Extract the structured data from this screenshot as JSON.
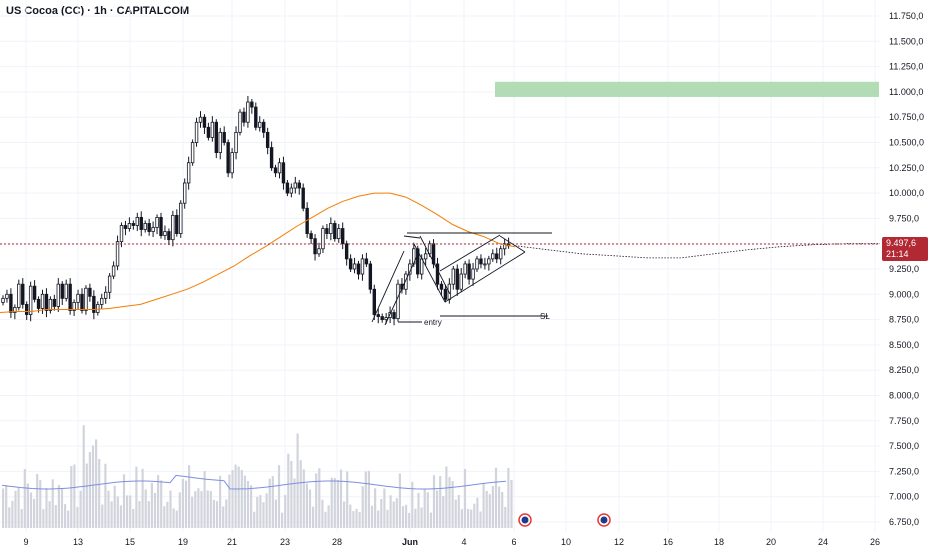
{
  "chart_data": {
    "type": "candlestick",
    "title": "US Cocoa (CC) · 1h · CAPITALCOM",
    "y_axis": {
      "position": "right",
      "ticks": [
        "11.750,0",
        "11.500,0",
        "11.250,0",
        "11.000,0",
        "10.750,0",
        "10.500,0",
        "10.250,0",
        "10.000,0",
        "9.750,0",
        "9.500,0",
        "9.250,0",
        "9.000,0",
        "8.750,0",
        "8.500,0",
        "8.250,0",
        "8.000,0",
        "7.750,0",
        "7.500,0",
        "7.250,0",
        "7.000,0",
        "6.750,0"
      ],
      "tick_values": [
        11750,
        11500,
        11250,
        11000,
        10750,
        10500,
        10250,
        10000,
        9750,
        9500,
        9250,
        9000,
        8750,
        8500,
        8250,
        8000,
        7750,
        7500,
        7250,
        7000,
        6750
      ],
      "range": [
        6700,
        11850
      ]
    },
    "x_axis": {
      "ticks": [
        "9",
        "13",
        "15",
        "19",
        "21",
        "23",
        "28",
        "Jun",
        "4",
        "6",
        "10",
        "12",
        "16",
        "18",
        "20",
        "24",
        "26"
      ],
      "bold_ticks": [
        "Jun"
      ]
    },
    "current_price": {
      "label": "9.497,6",
      "countdown": "21:14",
      "value": 9497.6,
      "color": "#b22833"
    },
    "target_zone": {
      "from": 10950,
      "to": 11100,
      "color": "#a5d6a7"
    },
    "annotations": [
      {
        "text": "entry",
        "price": 8740
      },
      {
        "text": "SL",
        "price": 8770
      }
    ],
    "colors": {
      "up": "#ffffff",
      "down": "#131722",
      "ma": "#f57c00",
      "volume": "#d1d4dc",
      "volume_ma": "#7e8ee0"
    },
    "candles_close": [
      8960,
      9000,
      8820,
      8870,
      9100,
      8900,
      8800,
      9080,
      8950,
      8860,
      9000,
      8840,
      8950,
      8880,
      9100,
      8960,
      9100,
      8840,
      8920,
      9000,
      8840,
      9060,
      8980,
      8820,
      8900,
      8960,
      9020,
      9180,
      9280,
      9520,
      9680,
      9650,
      9700,
      9680,
      9760,
      9640,
      9700,
      9620,
      9660,
      9760,
      9580,
      9620,
      9540,
      9780,
      9600,
      9900,
      10100,
      10300,
      10500,
      10700,
      10750,
      10650,
      10550,
      10700,
      10400,
      10600,
      10500,
      10200,
      10400,
      10600,
      10800,
      10700,
      10900,
      10850,
      10650,
      10700,
      10600,
      10450,
      10250,
      10200,
      10300,
      10100,
      10000,
      10050,
      10100,
      10050,
      9850,
      9600,
      9550,
      9400,
      9450,
      9650,
      9600,
      9700,
      9550,
      9650,
      9500,
      9350,
      9250,
      9300,
      9200,
      9350,
      9300,
      9050,
      8800,
      8780,
      8750,
      8770,
      8820,
      8760,
      9100,
      9050,
      9200,
      9300,
      9450,
      9200,
      9350,
      9400,
      9500,
      9300,
      9100,
      9050,
      8950,
      9100,
      9250,
      9050,
      9200,
      9300,
      9150,
      9250,
      9350,
      9300,
      9300,
      9350,
      9400,
      9350,
      9450,
      9500,
      9480
    ],
    "ma_values": [
      8820,
      8830,
      8830,
      8850,
      8850,
      8850,
      8850,
      8860,
      8880,
      8900,
      8950,
      9000,
      9050,
      9120,
      9200,
      9280,
      9380,
      9470,
      9570,
      9670,
      9760,
      9850,
      9920,
      9970,
      10000,
      10000,
      9960,
      9880,
      9790,
      9690,
      9620,
      9570,
      9500,
      9470
    ],
    "projection": [
      9480,
      9440,
      9400,
      9380,
      9360,
      9360,
      9400,
      9440,
      9470,
      9490,
      9500,
      9500
    ]
  }
}
